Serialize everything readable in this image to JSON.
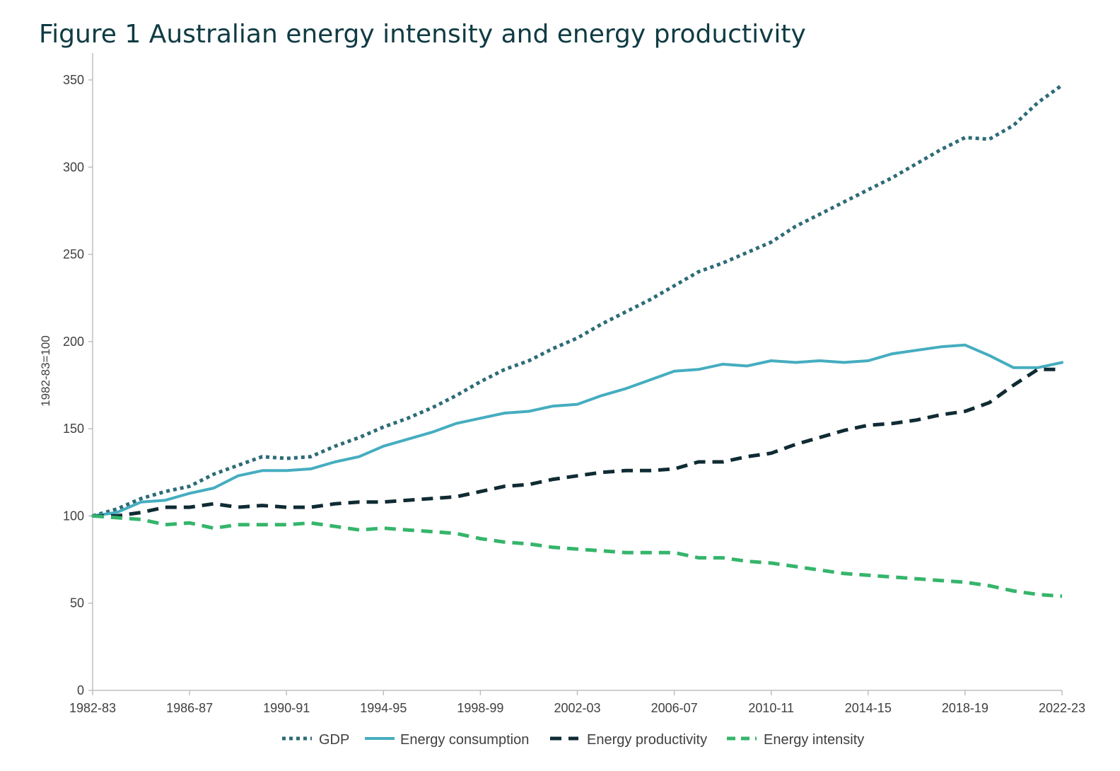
{
  "title": "Figure 1 Australian energy intensity and energy productivity",
  "chart_data": {
    "type": "line",
    "title": "Figure 1 Australian energy intensity and energy productivity",
    "xlabel": "",
    "ylabel": "1982-83=100",
    "ylim": [
      0,
      350
    ],
    "yticks": [
      0,
      50,
      100,
      150,
      200,
      250,
      300,
      350
    ],
    "x_tick_labels": [
      "1982-83",
      "1986-87",
      "1990-91",
      "1994-95",
      "1998-99",
      "2002-03",
      "2006-07",
      "2010-11",
      "2014-15",
      "2018-19",
      "2022-23"
    ],
    "x": [
      "1982-83",
      "1983-84",
      "1984-85",
      "1985-86",
      "1986-87",
      "1987-88",
      "1988-89",
      "1989-90",
      "1990-91",
      "1991-92",
      "1992-93",
      "1993-94",
      "1994-95",
      "1995-96",
      "1996-97",
      "1997-98",
      "1998-99",
      "1999-00",
      "2000-01",
      "2001-02",
      "2002-03",
      "2003-04",
      "2004-05",
      "2005-06",
      "2006-07",
      "2007-08",
      "2008-09",
      "2009-10",
      "2010-11",
      "2011-12",
      "2012-13",
      "2013-14",
      "2014-15",
      "2015-16",
      "2016-17",
      "2017-18",
      "2018-19",
      "2019-20",
      "2020-21",
      "2021-22",
      "2022-23"
    ],
    "grid": false,
    "legend_position": "bottom",
    "series": [
      {
        "name": "GDP",
        "style": "dotted",
        "color": "#2e6b78",
        "values": [
          100,
          104,
          110,
          114,
          117,
          124,
          129,
          134,
          133,
          134,
          140,
          145,
          151,
          156,
          162,
          169,
          177,
          184,
          189,
          196,
          202,
          210,
          217,
          224,
          232,
          240,
          245,
          251,
          257,
          266,
          273,
          280,
          287,
          294,
          302,
          310,
          317,
          316,
          324,
          337,
          347
        ]
      },
      {
        "name": "Energy consumption",
        "style": "solid",
        "color": "#45adc0",
        "values": [
          100,
          102,
          108,
          109,
          113,
          116,
          123,
          126,
          126,
          127,
          131,
          134,
          140,
          144,
          148,
          153,
          156,
          159,
          160,
          163,
          164,
          169,
          173,
          178,
          183,
          184,
          187,
          186,
          189,
          188,
          189,
          188,
          189,
          193,
          195,
          197,
          198,
          192,
          185,
          185,
          188
        ]
      },
      {
        "name": "Energy productivity",
        "style": "dashed",
        "color": "#0f2b33",
        "values": [
          100,
          100,
          102,
          105,
          105,
          107,
          105,
          106,
          105,
          105,
          107,
          108,
          108,
          109,
          110,
          111,
          114,
          117,
          118,
          121,
          123,
          125,
          126,
          126,
          127,
          131,
          131,
          134,
          136,
          141,
          145,
          149,
          152,
          153,
          155,
          158,
          160,
          165,
          175,
          184,
          184
        ]
      },
      {
        "name": "Energy intensity",
        "style": "dashed",
        "color": "#35b56b",
        "values": [
          100,
          99,
          98,
          95,
          96,
          93,
          95,
          95,
          95,
          96,
          94,
          92,
          93,
          92,
          91,
          90,
          87,
          85,
          84,
          82,
          81,
          80,
          79,
          79,
          79,
          76,
          76,
          74,
          73,
          71,
          69,
          67,
          66,
          65,
          64,
          63,
          62,
          60,
          57,
          55,
          54
        ]
      }
    ]
  }
}
